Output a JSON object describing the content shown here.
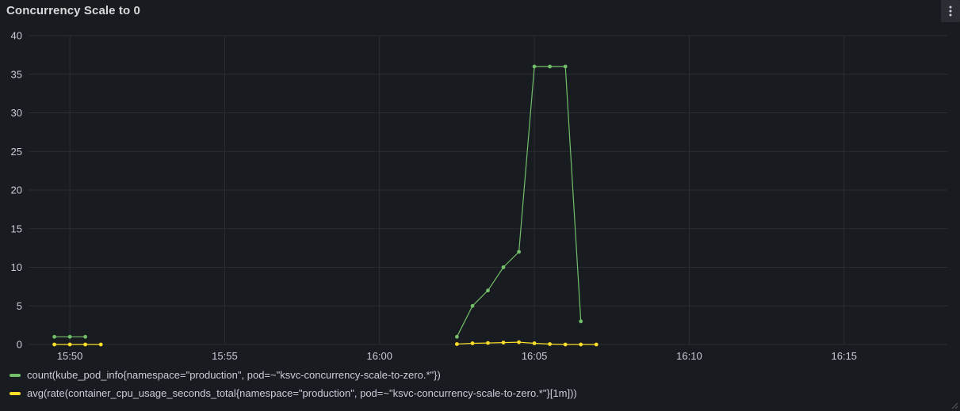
{
  "panel": {
    "title": "Concurrency Scale to 0",
    "menu_icon": "kebab-menu-icon",
    "resize_icon": "resize-handle-icon"
  },
  "colors": {
    "background": "#181b1f",
    "grid": "#2a2d33",
    "green": "#73bf69",
    "yellow": "#fade2a"
  },
  "legend": [
    {
      "label": "count(kube_pod_info{namespace=\"production\", pod=~\"ksvc-concurrency-scale-to-zero.*\"})",
      "color": "#73bf69"
    },
    {
      "label": "avg(rate(container_cpu_usage_seconds_total{namespace=\"production\", pod=~\"ksvc-concurrency-scale-to-zero.*\"}[1m]))",
      "color": "#fade2a"
    }
  ],
  "chart_data": {
    "type": "line",
    "title": "Concurrency Scale to 0",
    "ylim": [
      0,
      40
    ],
    "yticks": [
      0,
      5,
      10,
      15,
      20,
      25,
      30,
      35,
      40
    ],
    "xlim": [
      "15:48:40",
      "16:18:20"
    ],
    "xticks": [
      "15:50",
      "15:55",
      "16:00",
      "16:05",
      "16:10",
      "16:15"
    ],
    "grid": true,
    "legend_position": "bottom",
    "series": [
      {
        "name": "count(kube_pod_info{namespace=\"production\", pod=~\"ksvc-concurrency-scale-to-zero.*\"})",
        "color": "#73bf69",
        "segments": [
          [
            [
              "15:49:30",
              1
            ],
            [
              "15:50:00",
              1
            ],
            [
              "15:50:30",
              1
            ]
          ],
          [
            [
              "16:02:30",
              1
            ],
            [
              "16:03:00",
              5
            ],
            [
              "16:03:30",
              7
            ],
            [
              "16:04:00",
              10
            ],
            [
              "16:04:30",
              12
            ],
            [
              "16:05:00",
              36
            ],
            [
              "16:05:30",
              36
            ],
            [
              "16:06:00",
              36
            ],
            [
              "16:06:30",
              3
            ]
          ]
        ]
      },
      {
        "name": "avg(rate(container_cpu_usage_seconds_total{namespace=\"production\", pod=~\"ksvc-concurrency-scale-to-zero.*\"}[1m]))",
        "color": "#fade2a",
        "segments": [
          [
            [
              "15:49:30",
              0
            ],
            [
              "15:50:00",
              0
            ],
            [
              "15:50:30",
              0
            ],
            [
              "15:51:00",
              0
            ]
          ],
          [
            [
              "16:02:30",
              0.05
            ],
            [
              "16:03:00",
              0.15
            ],
            [
              "16:03:30",
              0.2
            ],
            [
              "16:04:00",
              0.25
            ],
            [
              "16:04:30",
              0.3
            ],
            [
              "16:05:00",
              0.15
            ],
            [
              "16:05:30",
              0.05
            ],
            [
              "16:06:00",
              0
            ],
            [
              "16:06:30",
              0
            ],
            [
              "16:07:00",
              0
            ]
          ]
        ]
      }
    ]
  }
}
